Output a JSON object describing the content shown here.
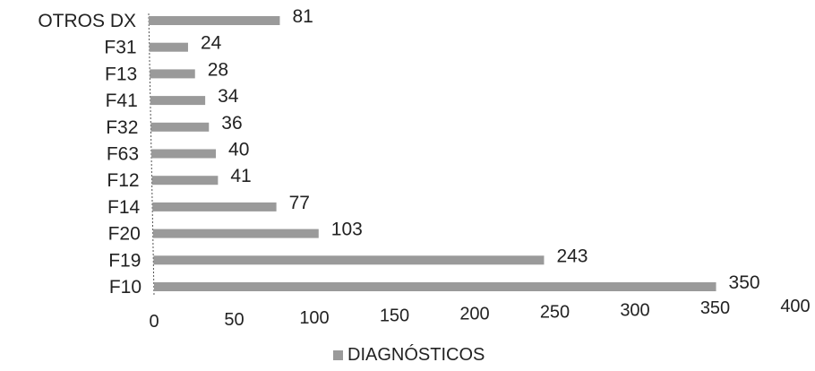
{
  "chart_data": {
    "type": "bar",
    "orientation": "horizontal",
    "categories": [
      "OTROS DX",
      "F31",
      "F13",
      "F41",
      "F32",
      "F63",
      "F12",
      "F14",
      "F20",
      "F19",
      "F10"
    ],
    "series": [
      {
        "name": "DIAGNÓSTICOS",
        "values": [
          81,
          24,
          28,
          34,
          36,
          40,
          41,
          77,
          103,
          243,
          350
        ],
        "value_labels": [
          "81",
          "24",
          "28",
          "34",
          "36",
          "40",
          "41",
          "77",
          "103",
          "243",
          "350"
        ]
      }
    ],
    "xlim": [
      0,
      400
    ],
    "x_ticks": [
      0,
      50,
      100,
      150,
      200,
      250,
      300,
      350,
      400
    ],
    "x_tick_labels": [
      "0",
      "50",
      "100",
      "150",
      "200",
      "250",
      "300",
      "350",
      "400"
    ],
    "grid": false,
    "legend": {
      "position": "bottom",
      "entries": [
        "DIAGNÓSTICOS"
      ]
    },
    "colors": {
      "bar": "#9a9a9a",
      "text": "#222222",
      "axis": "#555555"
    }
  }
}
